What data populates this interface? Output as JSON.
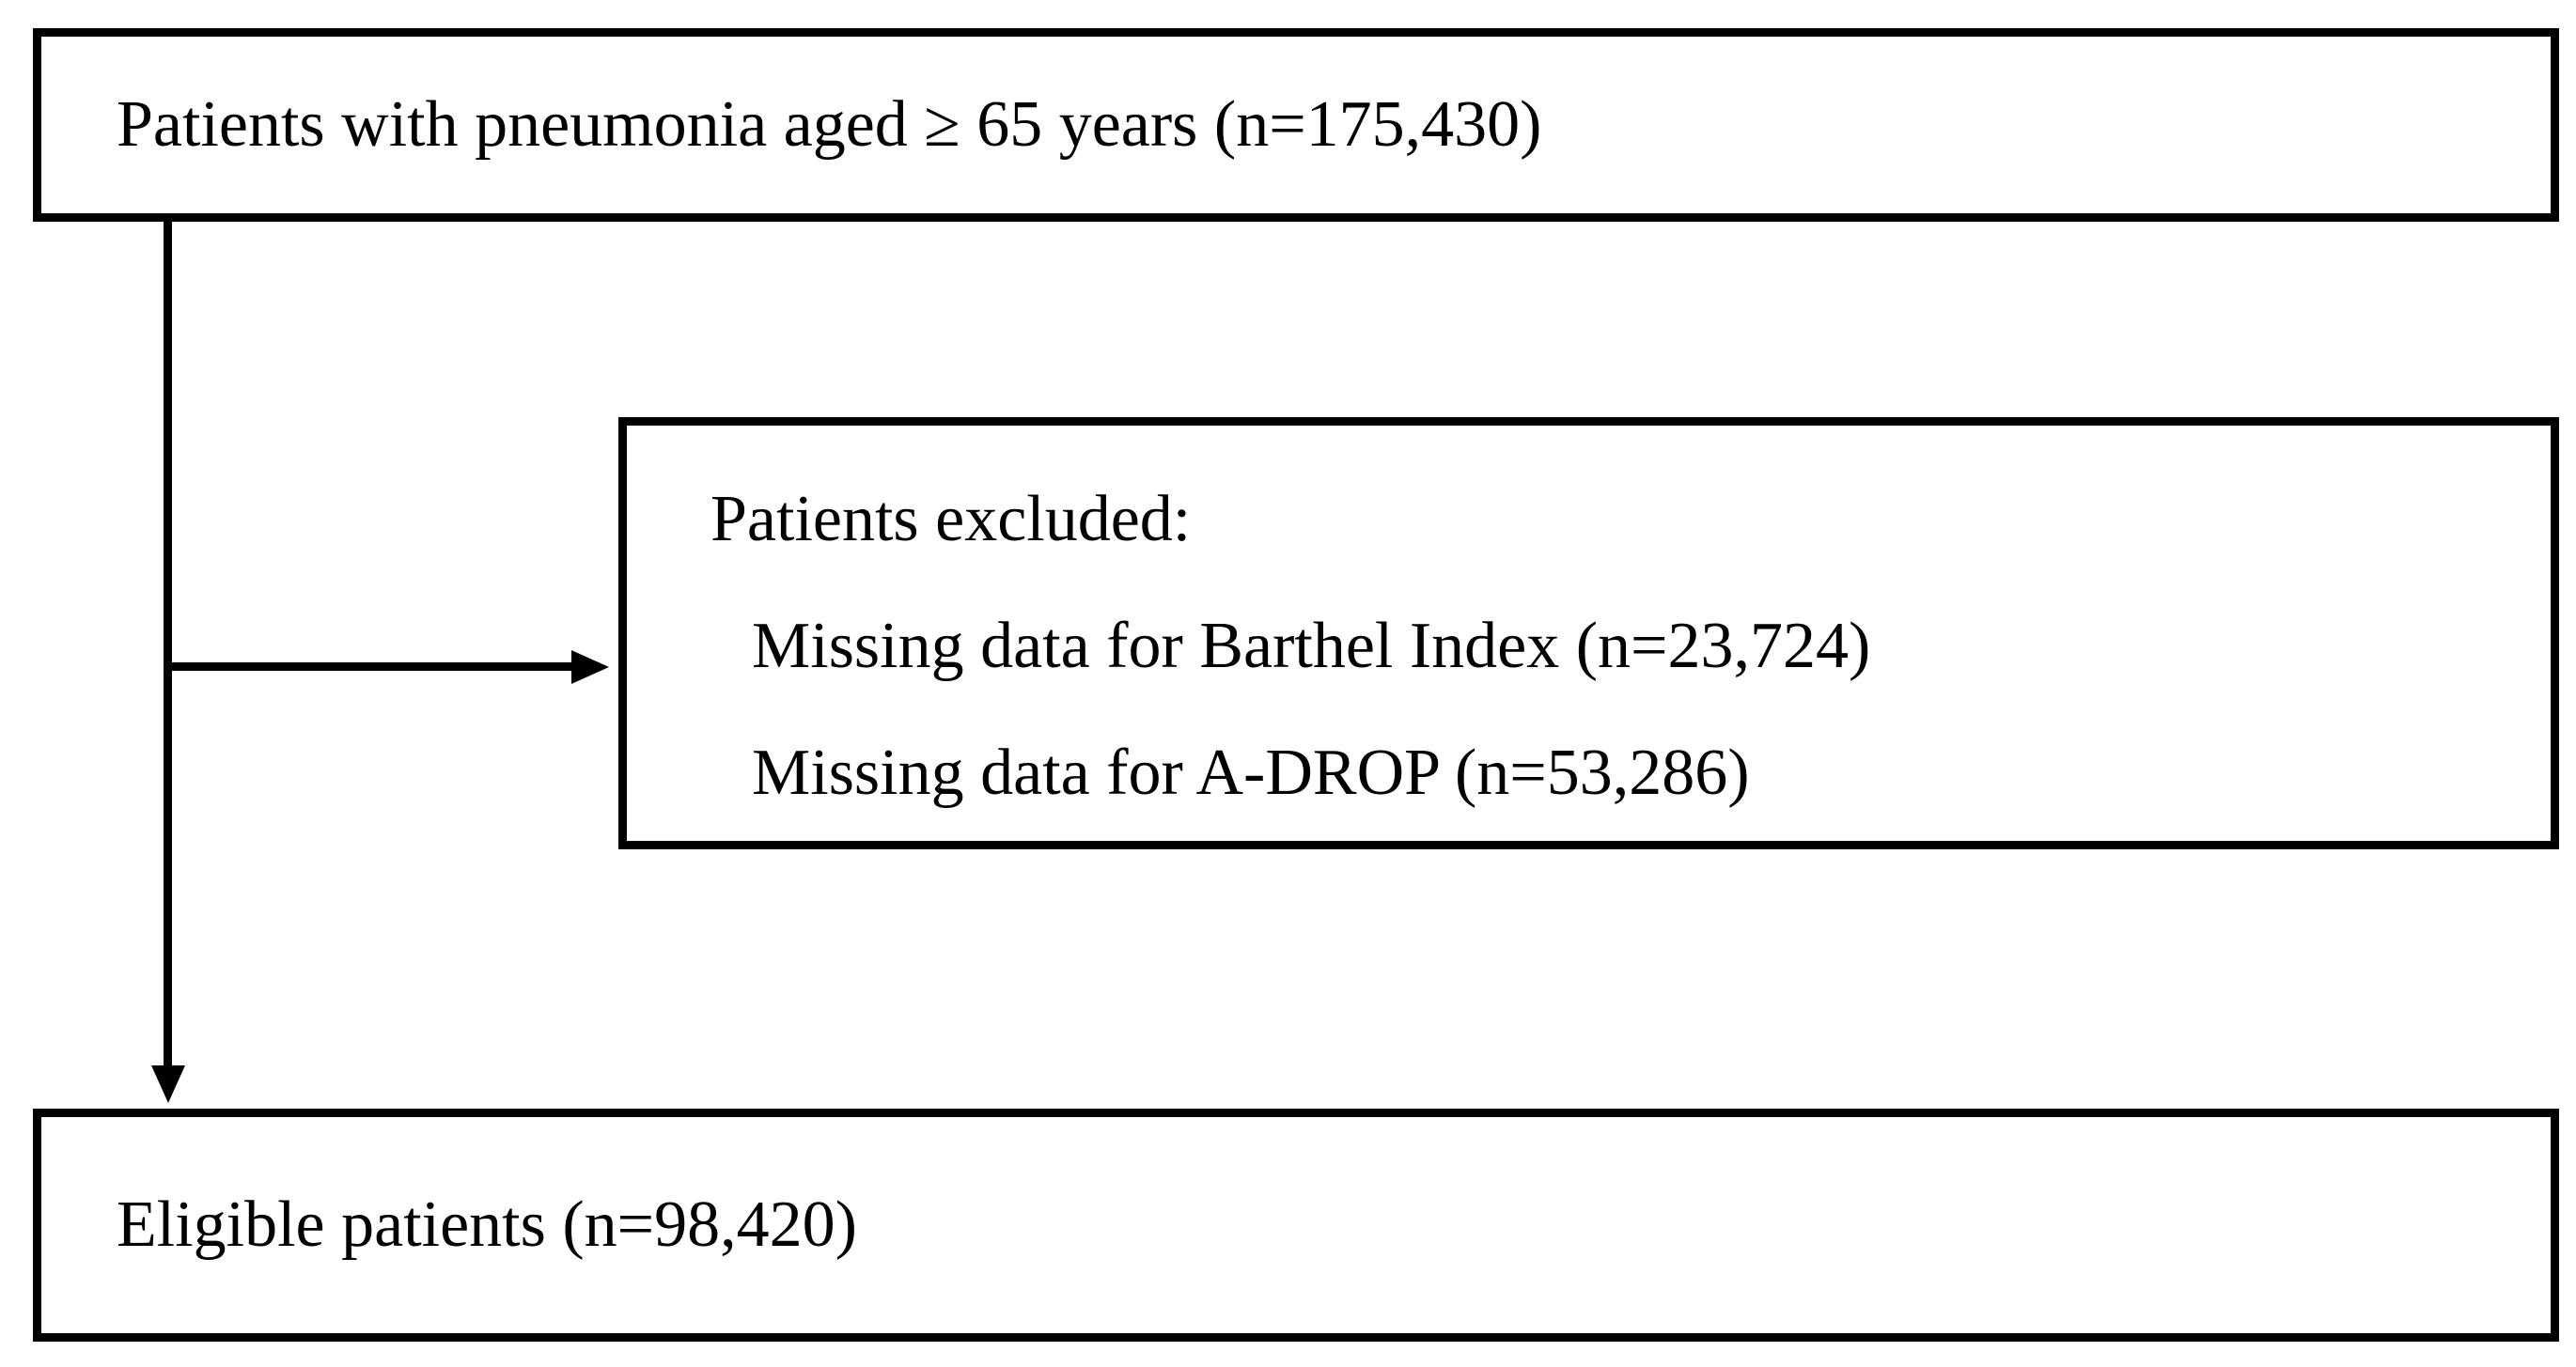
{
  "figure": {
    "type": "patient-flow-diagram",
    "colors": {
      "ink": "#000000",
      "paper": "#ffffff"
    },
    "nodes": {
      "top": {
        "text": "Patients with pneumonia aged ≥ 65 years (n=175,430)"
      },
      "excluded": {
        "title": "Patients excluded:",
        "items": [
          "Missing data for Barthel Index (n=23,724)",
          "Missing data for A-DROP (n=53,286)"
        ]
      },
      "bottom": {
        "text": "Eligible patients (n=98,420)"
      }
    }
  }
}
